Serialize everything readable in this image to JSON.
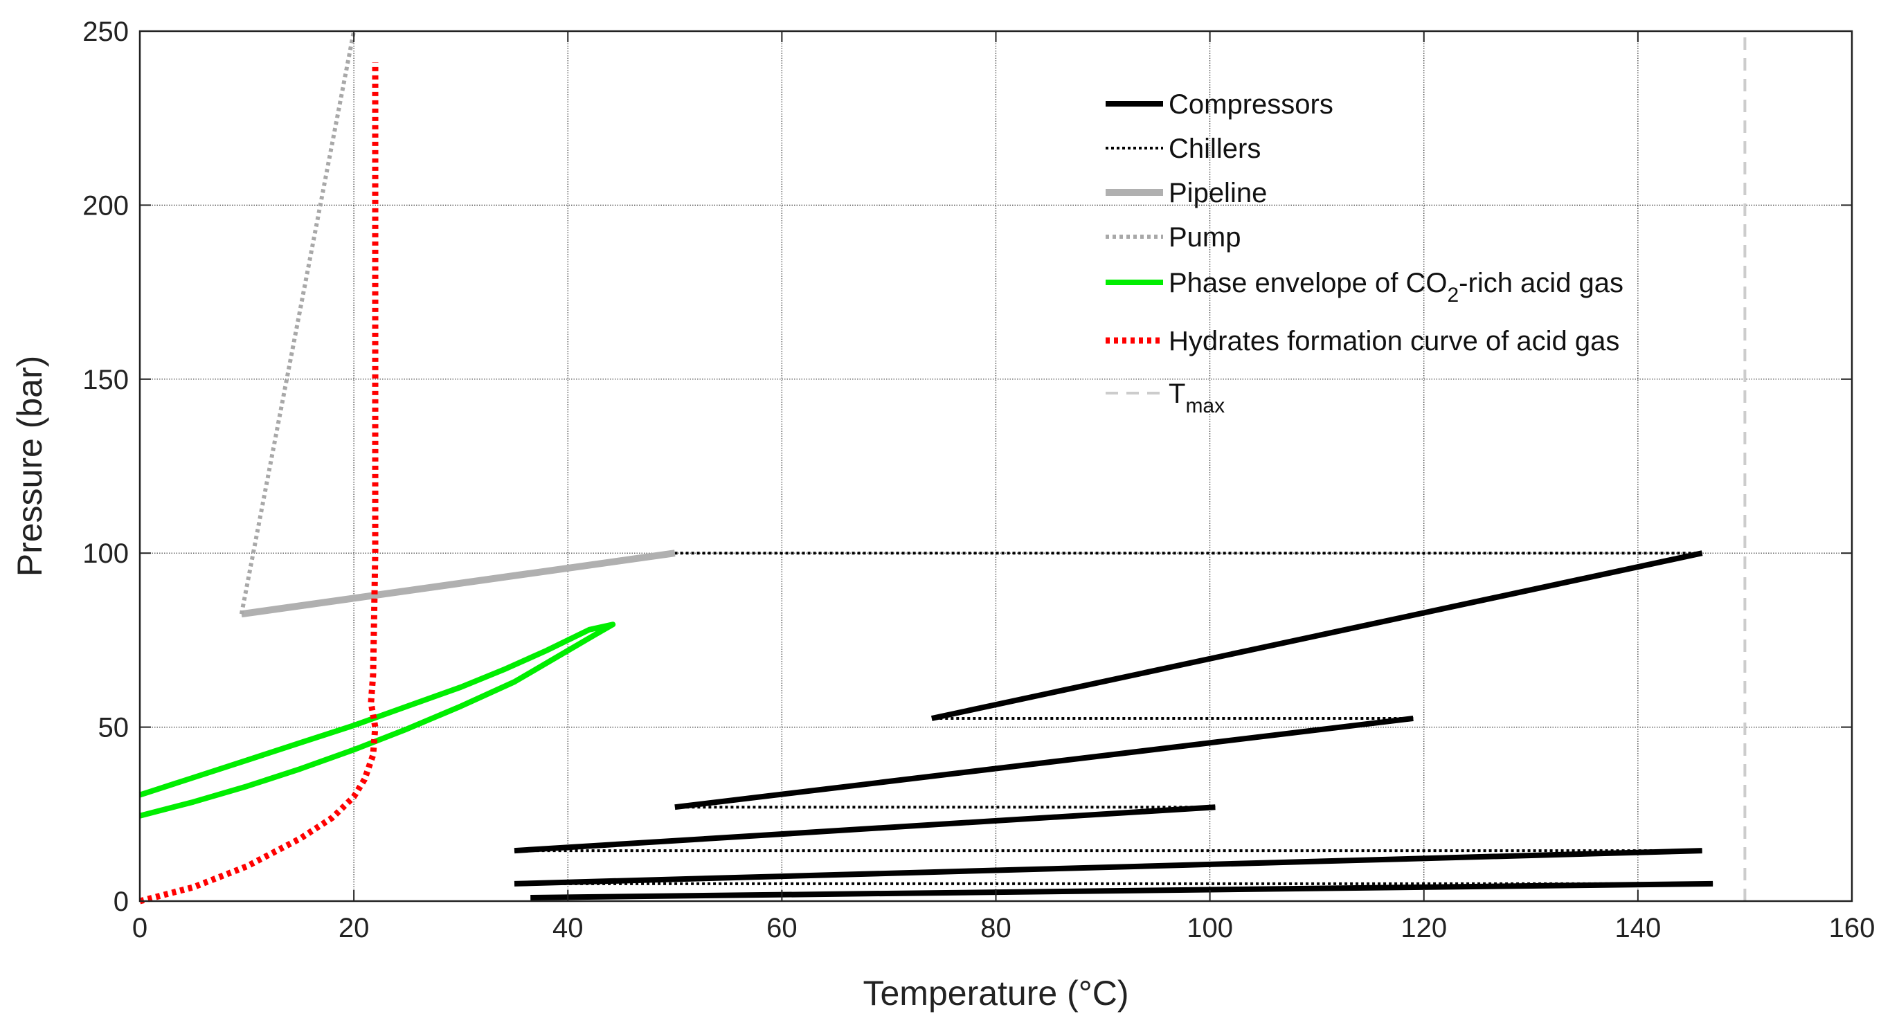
{
  "chart_data": {
    "type": "line",
    "xlabel": "Temperature (°C)",
    "ylabel": "Pressure (bar)",
    "xlim": [
      0,
      160
    ],
    "ylim": [
      0,
      250
    ],
    "xticks": [
      0,
      20,
      40,
      60,
      80,
      100,
      120,
      140,
      160
    ],
    "yticks": [
      0,
      50,
      100,
      150,
      200,
      250
    ],
    "grid": true,
    "legend_position": "top-right",
    "legend": [
      {
        "key": "compressors",
        "label": "Compressors",
        "color": "#000000",
        "style": "solid-thick"
      },
      {
        "key": "chillers",
        "label": "Chillers",
        "color": "#000000",
        "style": "dotted"
      },
      {
        "key": "pipeline",
        "label": "Pipeline",
        "color": "#b0b0b0",
        "style": "solid-thick"
      },
      {
        "key": "pump",
        "label": "Pump",
        "color": "#a8a8a8",
        "style": "dotted"
      },
      {
        "key": "envelope",
        "label": "Phase envelope of CO",
        "sub": "2",
        "suffix": "-rich acid gas",
        "color": "#00ee00",
        "style": "solid-thick"
      },
      {
        "key": "hydrates",
        "label": "Hydrates formation curve of acid gas",
        "color": "#ff0000",
        "style": "dotted-thick"
      },
      {
        "key": "tmax",
        "label": "T",
        "sub": "max",
        "suffix": "",
        "color": "#cccccc",
        "style": "dashed"
      }
    ],
    "series": [
      {
        "name": "Compressors",
        "segments": [
          [
            [
              36.5,
              1.0
            ],
            [
              147,
              5.0
            ]
          ],
          [
            [
              35,
              5.0
            ],
            [
              146,
              14.5
            ]
          ],
          [
            [
              35,
              14.5
            ],
            [
              100.5,
              27.0
            ]
          ],
          [
            [
              50,
              27.0
            ],
            [
              119,
              52.5
            ]
          ],
          [
            [
              74,
              52.5
            ],
            [
              146,
              100
            ]
          ]
        ]
      },
      {
        "name": "Chillers",
        "segments": [
          [
            [
              147,
              5.0
            ],
            [
              35,
              5.0
            ]
          ],
          [
            [
              146,
              14.5
            ],
            [
              35,
              14.5
            ]
          ],
          [
            [
              100.5,
              27.0
            ],
            [
              50,
              27.0
            ]
          ],
          [
            [
              119,
              52.5
            ],
            [
              74,
              52.5
            ]
          ],
          [
            [
              146,
              100
            ],
            [
              50,
              100
            ]
          ]
        ]
      },
      {
        "name": "Pipeline",
        "segments": [
          [
            [
              50,
              100
            ],
            [
              9.5,
              82.5
            ]
          ]
        ]
      },
      {
        "name": "Pump",
        "segments": [
          [
            [
              9.5,
              82.5
            ],
            [
              20,
              250
            ]
          ]
        ]
      },
      {
        "name": "Phase envelope of CO2-rich acid gas",
        "points": [
          [
            0,
            24.5
          ],
          [
            5,
            28.5
          ],
          [
            10,
            33
          ],
          [
            15,
            38
          ],
          [
            20,
            43.5
          ],
          [
            25,
            49.5
          ],
          [
            30,
            56
          ],
          [
            35,
            63
          ],
          [
            40,
            72
          ],
          [
            42.5,
            76.5
          ],
          [
            44.2,
            79.5
          ],
          [
            42,
            78
          ],
          [
            38,
            72
          ],
          [
            34,
            66.5
          ],
          [
            30,
            61.5
          ],
          [
            25,
            56
          ],
          [
            20,
            50.5
          ],
          [
            15,
            45.5
          ],
          [
            10,
            40.5
          ],
          [
            5,
            35.5
          ],
          [
            0,
            30.5
          ]
        ]
      },
      {
        "name": "Hydrates formation curve of acid gas",
        "points": [
          [
            0,
            0
          ],
          [
            5,
            4
          ],
          [
            10,
            10
          ],
          [
            15,
            18
          ],
          [
            18,
            24
          ],
          [
            20,
            30
          ],
          [
            21,
            35
          ],
          [
            21.8,
            42
          ],
          [
            22,
            50
          ],
          [
            21.6,
            57
          ],
          [
            21.8,
            65
          ],
          [
            22,
            100
          ],
          [
            22,
            150
          ],
          [
            22,
            200
          ],
          [
            22,
            241
          ]
        ]
      },
      {
        "name": "Tmax",
        "segments": [
          [
            [
              150,
              0
            ],
            [
              150,
              250
            ]
          ]
        ]
      }
    ]
  }
}
